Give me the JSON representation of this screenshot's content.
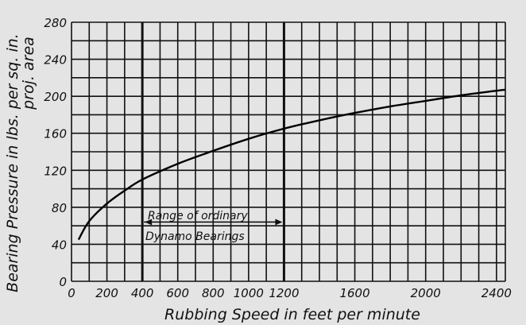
{
  "chart_data": {
    "type": "line",
    "xlabel": "Rubbing Speed in feet per minute",
    "ylabel": "Bearing Pressure in lbs. per sq. in. proj. area",
    "ylabel_lines": [
      "Bearing Pressure in lbs. per sq. in.",
      "proj. area"
    ],
    "xlim": [
      0,
      2450
    ],
    "ylim": [
      0,
      280
    ],
    "x_ticks": [
      0,
      200,
      400,
      600,
      800,
      1000,
      1200,
      1600,
      2000,
      2400
    ],
    "x_tick_labels": [
      "0",
      "200",
      "400",
      "600",
      "800",
      "1000",
      "1200",
      "1600",
      "2000",
      "2400"
    ],
    "y_ticks": [
      0,
      40,
      80,
      120,
      160,
      200,
      240,
      280
    ],
    "y_tick_labels": [
      "0",
      "40",
      "80",
      "120",
      "160",
      "200",
      "240",
      "280"
    ],
    "grid": true,
    "x": [
      40,
      100,
      200,
      300,
      400,
      600,
      800,
      1000,
      1200,
      1400,
      1600,
      1800,
      2000,
      2200,
      2400,
      2450
    ],
    "y": [
      45,
      65,
      84,
      98,
      110,
      127,
      141,
      154,
      165,
      174,
      182,
      189,
      195,
      201,
      206,
      207
    ],
    "annotation": {
      "lines": [
        "Range of ordinary",
        "Dynamo Bearings"
      ],
      "x_range": [
        400,
        1200
      ]
    }
  }
}
